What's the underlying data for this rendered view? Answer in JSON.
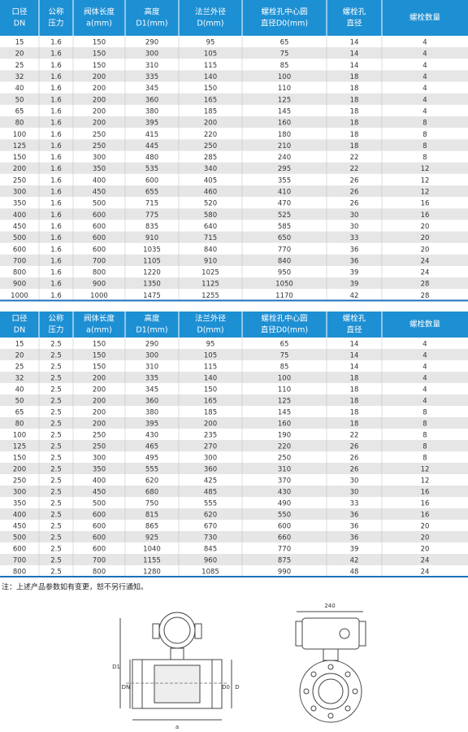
{
  "tables": [
    {
      "headers": [
        [
          "口径",
          "DN"
        ],
        [
          "公称",
          "压力"
        ],
        [
          "阀体长度",
          "a(mm)"
        ],
        [
          "高度",
          "D1(mm)"
        ],
        [
          "法兰外径",
          "D(mm)"
        ],
        [
          "螺栓孔中心圆",
          "直径D0(mm)"
        ],
        [
          "螺栓孔",
          "直径"
        ],
        [
          "螺栓数量"
        ]
      ],
      "rows": [
        [
          "15",
          "1.6",
          "150",
          "290",
          "95",
          "65",
          "14",
          "4"
        ],
        [
          "20",
          "1.6",
          "150",
          "300",
          "105",
          "75",
          "14",
          "4"
        ],
        [
          "25",
          "1.6",
          "150",
          "310",
          "115",
          "85",
          "14",
          "4"
        ],
        [
          "32",
          "1.6",
          "200",
          "335",
          "140",
          "100",
          "18",
          "4"
        ],
        [
          "40",
          "1.6",
          "200",
          "345",
          "150",
          "110",
          "18",
          "4"
        ],
        [
          "50",
          "1.6",
          "200",
          "360",
          "165",
          "125",
          "18",
          "4"
        ],
        [
          "65",
          "1.6",
          "200",
          "380",
          "185",
          "145",
          "18",
          "4"
        ],
        [
          "80",
          "1.6",
          "200",
          "395",
          "200",
          "160",
          "18",
          "8"
        ],
        [
          "100",
          "1.6",
          "250",
          "415",
          "220",
          "180",
          "18",
          "8"
        ],
        [
          "125",
          "1.6",
          "250",
          "445",
          "250",
          "210",
          "18",
          "8"
        ],
        [
          "150",
          "1.6",
          "300",
          "480",
          "285",
          "240",
          "22",
          "8"
        ],
        [
          "200",
          "1.6",
          "350",
          "535",
          "340",
          "295",
          "22",
          "12"
        ],
        [
          "250",
          "1.6",
          "400",
          "600",
          "405",
          "355",
          "26",
          "12"
        ],
        [
          "300",
          "1.6",
          "450",
          "655",
          "460",
          "410",
          "26",
          "12"
        ],
        [
          "350",
          "1.6",
          "500",
          "715",
          "520",
          "470",
          "26",
          "16"
        ],
        [
          "400",
          "1.6",
          "600",
          "775",
          "580",
          "525",
          "30",
          "16"
        ],
        [
          "450",
          "1.6",
          "600",
          "835",
          "640",
          "585",
          "30",
          "20"
        ],
        [
          "500",
          "1.6",
          "600",
          "910",
          "715",
          "650",
          "33",
          "20"
        ],
        [
          "600",
          "1.6",
          "600",
          "1035",
          "840",
          "770",
          "36",
          "20"
        ],
        [
          "700",
          "1.6",
          "700",
          "1105",
          "910",
          "840",
          "36",
          "24"
        ],
        [
          "800",
          "1.6",
          "800",
          "1220",
          "1025",
          "950",
          "39",
          "24"
        ],
        [
          "900",
          "1.6",
          "900",
          "1350",
          "1125",
          "1050",
          "39",
          "28"
        ],
        [
          "1000",
          "1.6",
          "1000",
          "1475",
          "1255",
          "1170",
          "42",
          "28"
        ]
      ]
    },
    {
      "headers": [
        [
          "口径",
          "DN"
        ],
        [
          "公称",
          "压力"
        ],
        [
          "阀体长度",
          "a(mm)"
        ],
        [
          "高度",
          "D1(mm)"
        ],
        [
          "法兰外径",
          "D(mm)"
        ],
        [
          "螺栓孔中心圆",
          "直径D0(mm)"
        ],
        [
          "螺栓孔",
          "直径"
        ],
        [
          "螺栓数量"
        ]
      ],
      "rows": [
        [
          "15",
          "2.5",
          "150",
          "290",
          "95",
          "65",
          "14",
          "4"
        ],
        [
          "20",
          "2.5",
          "150",
          "300",
          "105",
          "75",
          "14",
          "4"
        ],
        [
          "25",
          "2.5",
          "150",
          "310",
          "115",
          "85",
          "14",
          "4"
        ],
        [
          "32",
          "2.5",
          "200",
          "335",
          "140",
          "100",
          "18",
          "4"
        ],
        [
          "40",
          "2.5",
          "200",
          "345",
          "150",
          "110",
          "18",
          "4"
        ],
        [
          "50",
          "2.5",
          "200",
          "360",
          "165",
          "125",
          "18",
          "4"
        ],
        [
          "65",
          "2.5",
          "200",
          "380",
          "185",
          "145",
          "18",
          "8"
        ],
        [
          "80",
          "2.5",
          "200",
          "395",
          "200",
          "160",
          "18",
          "8"
        ],
        [
          "100",
          "2.5",
          "250",
          "430",
          "235",
          "190",
          "22",
          "8"
        ],
        [
          "125",
          "2.5",
          "250",
          "465",
          "270",
          "220",
          "26",
          "8"
        ],
        [
          "150",
          "2.5",
          "300",
          "495",
          "300",
          "250",
          "26",
          "8"
        ],
        [
          "200",
          "2.5",
          "350",
          "555",
          "360",
          "310",
          "26",
          "12"
        ],
        [
          "250",
          "2.5",
          "400",
          "620",
          "425",
          "370",
          "30",
          "12"
        ],
        [
          "300",
          "2.5",
          "450",
          "680",
          "485",
          "430",
          "30",
          "16"
        ],
        [
          "350",
          "2.5",
          "500",
          "750",
          "555",
          "490",
          "33",
          "16"
        ],
        [
          "400",
          "2.5",
          "600",
          "815",
          "620",
          "550",
          "36",
          "16"
        ],
        [
          "450",
          "2.5",
          "600",
          "865",
          "670",
          "600",
          "36",
          "20"
        ],
        [
          "500",
          "2.5",
          "600",
          "925",
          "730",
          "660",
          "36",
          "20"
        ],
        [
          "600",
          "2.5",
          "600",
          "1040",
          "845",
          "770",
          "39",
          "20"
        ],
        [
          "700",
          "2.5",
          "700",
          "1155",
          "960",
          "875",
          "42",
          "24"
        ],
        [
          "800",
          "2.5",
          "800",
          "1280",
          "1085",
          "990",
          "48",
          "24"
        ]
      ]
    }
  ],
  "note": "注：上述产品参数如有变更，恕不另行通知。",
  "diagram": {
    "front": {
      "a": "a",
      "D1": "D1",
      "DN": "DN",
      "D0": "D0",
      "D": "D"
    },
    "side": {
      "width": "240"
    }
  }
}
